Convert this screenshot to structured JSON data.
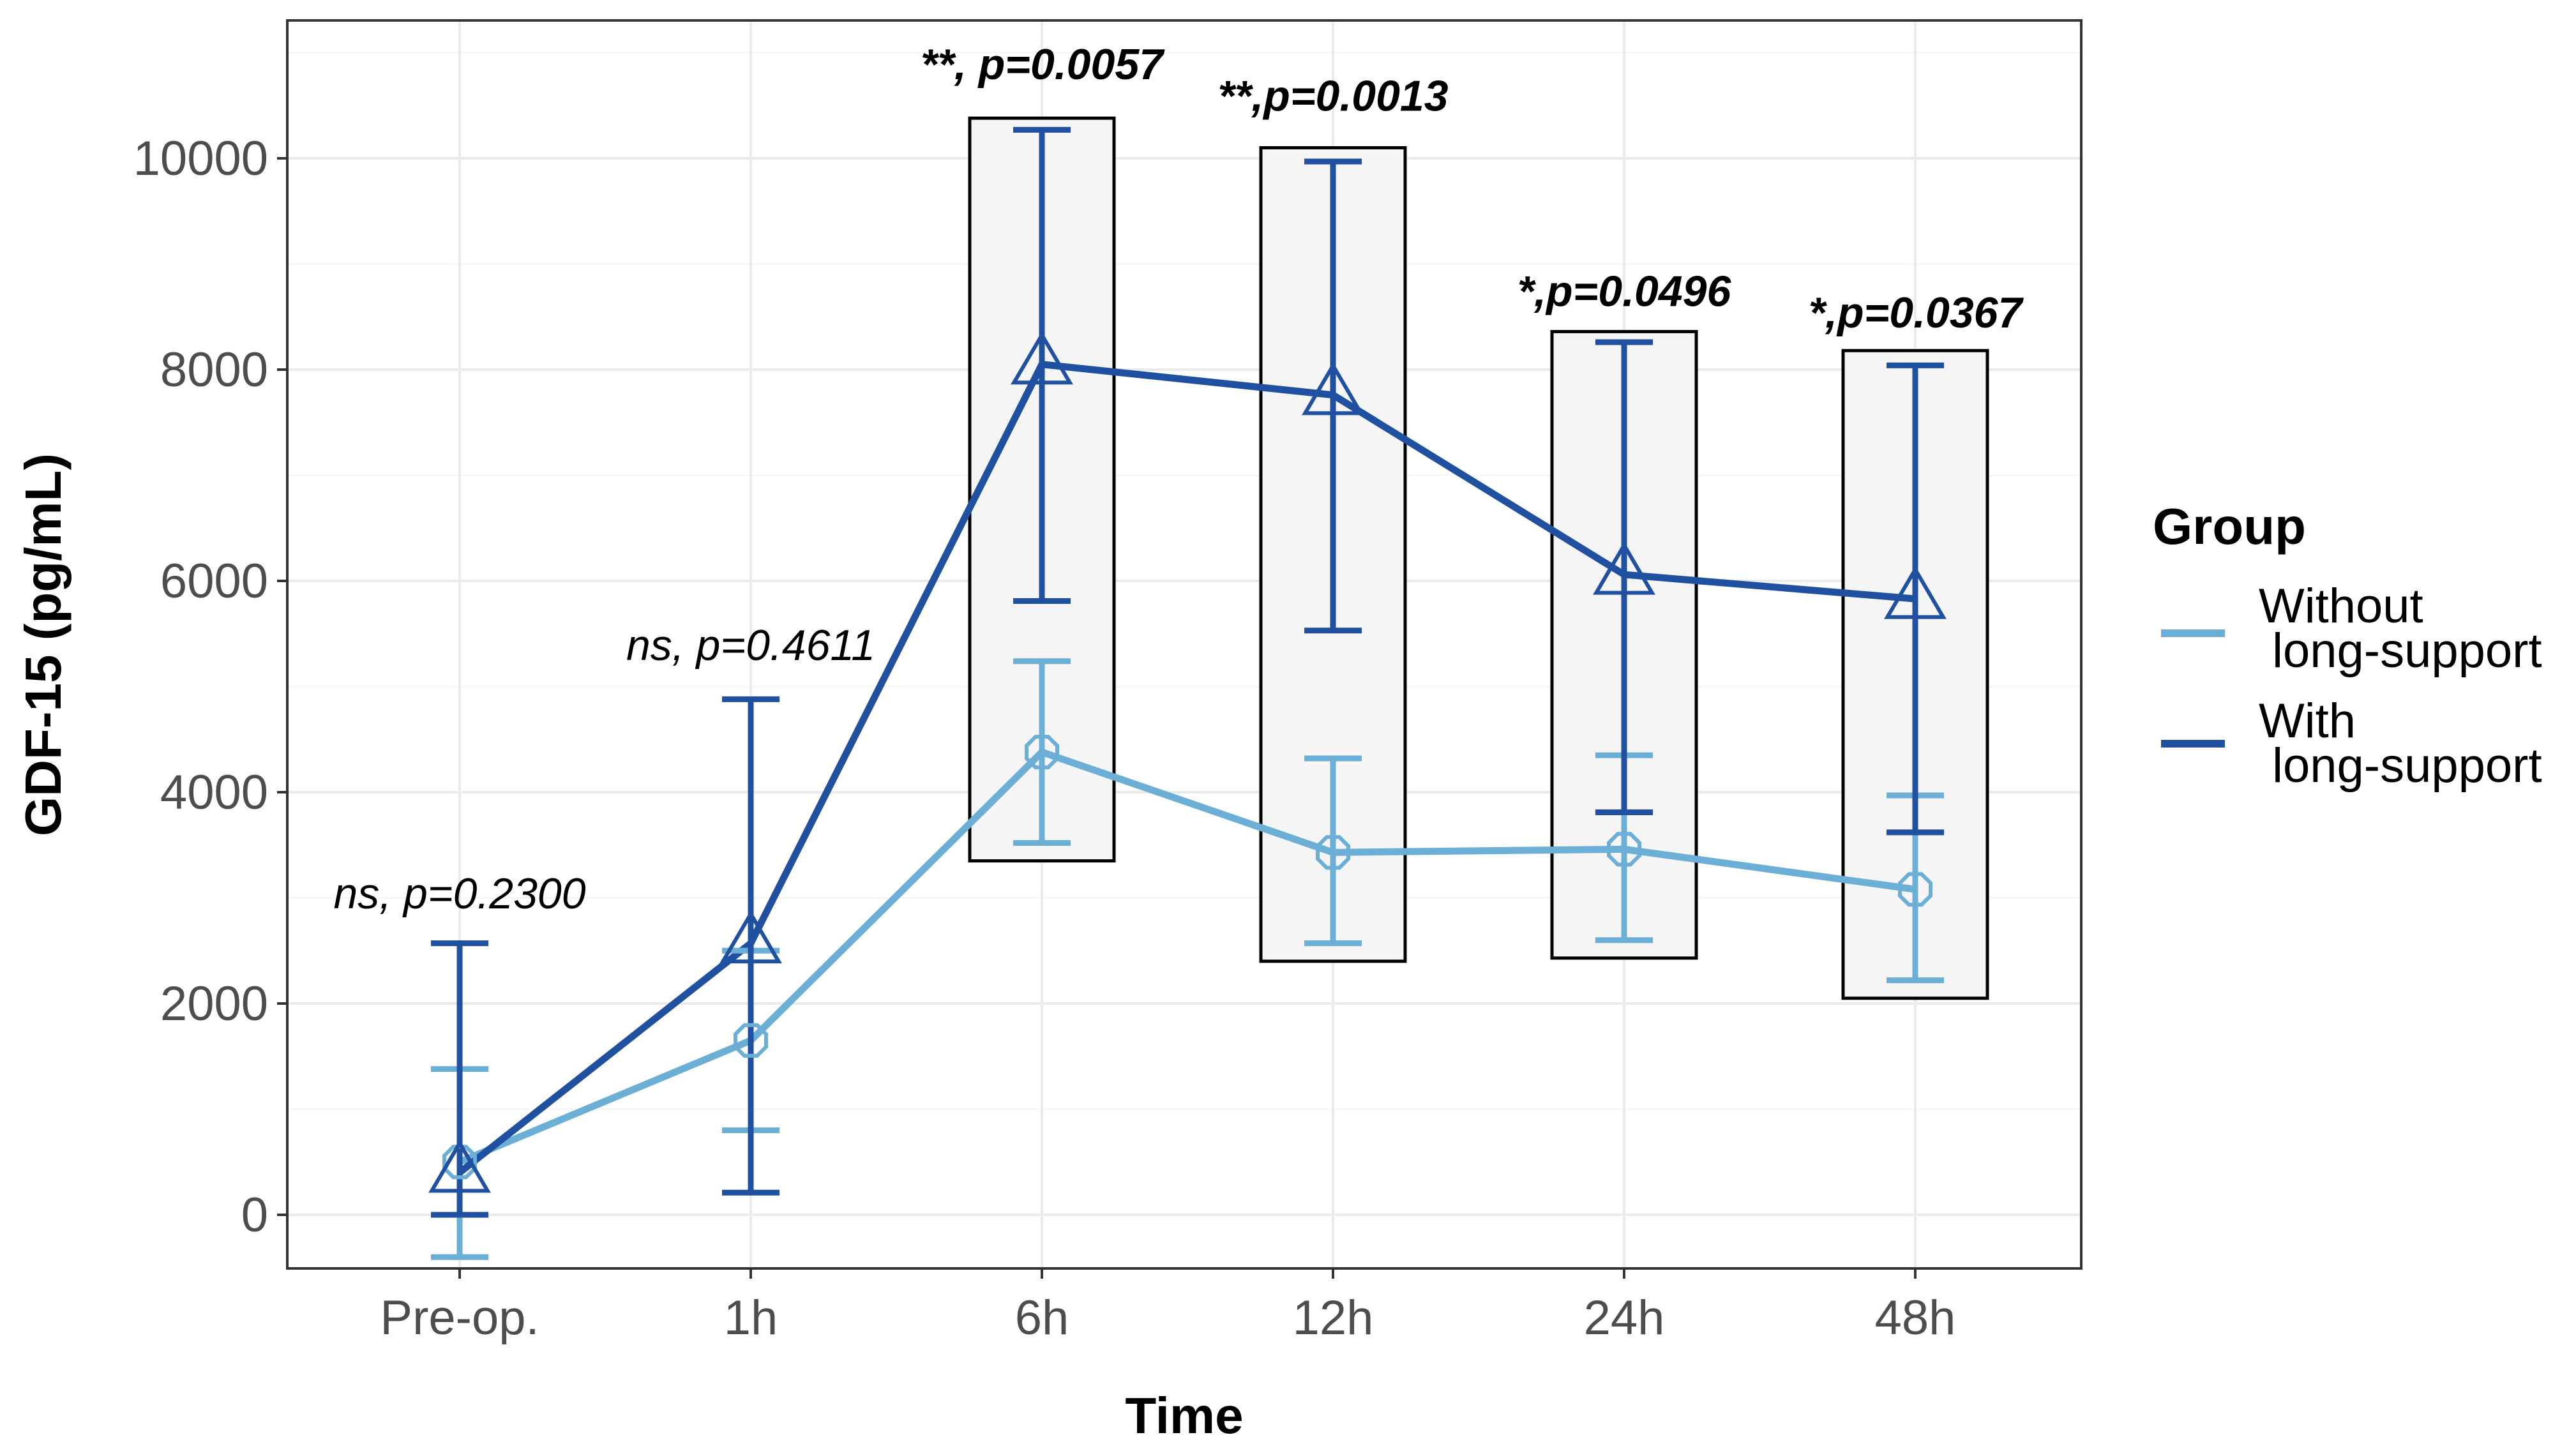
{
  "chart_data": {
    "type": "line",
    "xlabel": "Time",
    "ylabel": "GDF-15 (pg/mL)",
    "categories": [
      "Pre-op.",
      "1h",
      "6h",
      "12h",
      "24h",
      "48h"
    ],
    "ylim": [
      -500,
      11300
    ],
    "yticks": [
      0,
      2000,
      4000,
      6000,
      8000,
      10000
    ],
    "grid": true,
    "legend": {
      "title": "Group",
      "placement": "right",
      "entries": [
        {
          "line1": "Without",
          "line2": " long-support"
        },
        {
          "line1": "With",
          "line2": " long-support"
        }
      ]
    },
    "series": [
      {
        "name": "Without long-support",
        "color": "#6baed6",
        "marker": "octagon",
        "values": [
          500,
          1650,
          4380,
          3430,
          3460,
          3080
        ],
        "error_low": [
          -400,
          800,
          3520,
          2570,
          2600,
          2220
        ],
        "error_high": [
          1380,
          2500,
          5240,
          4320,
          4350,
          3970
        ]
      },
      {
        "name": "With long-support",
        "color": "#2050a0",
        "marker": "triangle",
        "values": [
          400,
          2570,
          8050,
          7760,
          6060,
          5830
        ],
        "error_low": [
          0,
          210,
          5810,
          5530,
          3810,
          3620
        ],
        "error_high": [
          2570,
          4880,
          10270,
          9970,
          8260,
          8040
        ]
      }
    ],
    "annotations": [
      {
        "category": "Pre-op.",
        "text": "ns, p=0.2300",
        "bold": false,
        "y": 2900
      },
      {
        "category": "1h",
        "text": "ns, p=0.4611",
        "bold": false,
        "y": 5250
      },
      {
        "category": "6h",
        "text": "**, p=0.0057",
        "bold": true,
        "y": 10750,
        "box": [
          3350,
          10380
        ]
      },
      {
        "category": "12h",
        "text": "**,p=0.0013",
        "bold": true,
        "y": 10450,
        "box": [
          2400,
          10100
        ]
      },
      {
        "category": "24h",
        "text": "*,p=0.0496",
        "bold": true,
        "y": 8600,
        "box": [
          2430,
          8360
        ]
      },
      {
        "category": "48h",
        "text": "*,p=0.0367",
        "bold": true,
        "y": 8400,
        "box": [
          2050,
          8180
        ]
      }
    ]
  }
}
